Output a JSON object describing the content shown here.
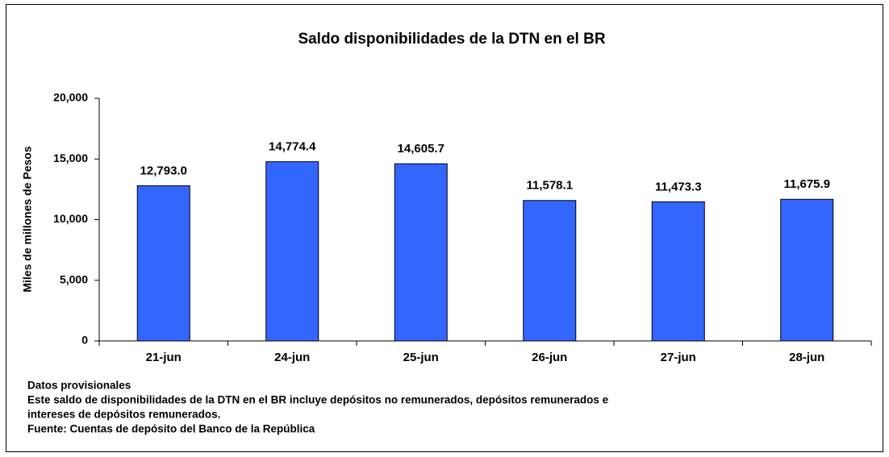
{
  "chart_data": {
    "type": "bar",
    "title": "Saldo disponibilidades de la DTN en el BR",
    "y_label": "Miles de millones de Pesos",
    "categories": [
      "21-jun",
      "24-jun",
      "25-jun",
      "26-jun",
      "27-jun",
      "28-jun"
    ],
    "values": [
      12793.0,
      14774.4,
      14605.7,
      11578.1,
      11473.3,
      11675.9
    ],
    "value_labels": [
      "12,793.0",
      "14,774.4",
      "14,605.7",
      "11,578.1",
      "11,473.3",
      "11,675.9"
    ],
    "color": "#3366ff",
    "ylim": [
      0,
      20000
    ],
    "yticks": [
      0,
      {
        "value": 5000,
        "label": "5,000"
      },
      {
        "value": 10000,
        "label": "10,000"
      },
      {
        "value": 15000,
        "label": "15,000"
      },
      {
        "value": 20000,
        "label": "20,000"
      }
    ],
    "grid": false,
    "notes": [
      "Datos provisionales",
      "Este saldo de disponibilidades  de la DTN en el BR incluye depósitos no remunerados, depósitos remunerados e",
      "intereses de depósitos remunerados.",
      "Fuente: Cuentas de depósito del Banco de la República"
    ]
  }
}
